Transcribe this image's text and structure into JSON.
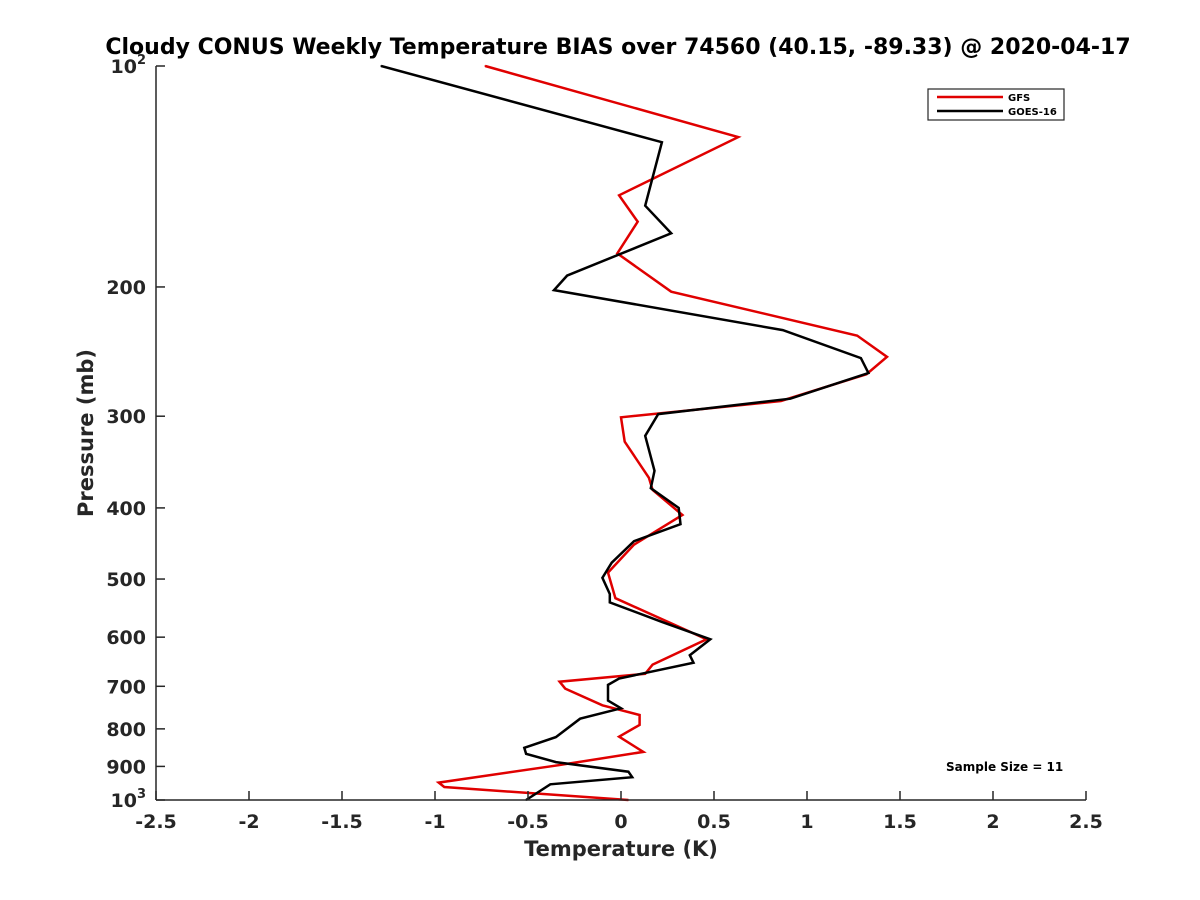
{
  "chart_data": {
    "type": "line",
    "title": "Cloudy CONUS Weekly Temperature BIAS over 74560 (40.15, -89.33) @ 2020-04-17",
    "xlabel": "Temperature (K)",
    "ylabel": "Pressure (mb)",
    "xlim": [
      -2.5,
      2.5
    ],
    "ylim": [
      100,
      1000
    ],
    "yscale": "log",
    "y_reversed": true,
    "grid": false,
    "legend_position": "top-right",
    "x_ticks": [
      -2.5,
      -2,
      -1.5,
      -1,
      -0.5,
      0,
      0.5,
      1,
      1.5,
      2,
      2.5
    ],
    "x_tick_labels": [
      "-2.5",
      "-2",
      "-1.5",
      "-1",
      "-0.5",
      "0",
      "0.5",
      "1",
      "1.5",
      "2",
      "2.5"
    ],
    "y_ticks": [
      100,
      200,
      300,
      400,
      500,
      600,
      700,
      800,
      900,
      1000
    ],
    "y_tick_labels": [
      {
        "base": "10",
        "exp": "2"
      },
      {
        "base": "200",
        "exp": ""
      },
      {
        "base": "300",
        "exp": ""
      },
      {
        "base": "400",
        "exp": ""
      },
      {
        "base": "500",
        "exp": ""
      },
      {
        "base": "600",
        "exp": ""
      },
      {
        "base": "700",
        "exp": ""
      },
      {
        "base": "800",
        "exp": ""
      },
      {
        "base": "900",
        "exp": ""
      },
      {
        "base": "10",
        "exp": "3"
      }
    ],
    "annotation": "Sample Size = 11",
    "series": [
      {
        "name": "GFS",
        "color": "#e00000",
        "points": [
          [
            -0.73,
            100
          ],
          [
            0.63,
            125
          ],
          [
            -0.01,
            150
          ],
          [
            0.09,
            163
          ],
          [
            -0.02,
            180
          ],
          [
            0.27,
            203
          ],
          [
            1.27,
            233
          ],
          [
            1.43,
            249
          ],
          [
            1.32,
            263
          ],
          [
            0.86,
            286
          ],
          [
            0.0,
            301
          ],
          [
            0.02,
            325
          ],
          [
            0.15,
            364
          ],
          [
            0.17,
            378
          ],
          [
            0.33,
            409
          ],
          [
            0.07,
            449
          ],
          [
            -0.07,
            490
          ],
          [
            -0.03,
            531
          ],
          [
            0.22,
            567
          ],
          [
            0.46,
            604
          ],
          [
            0.17,
            654
          ],
          [
            0.13,
            673
          ],
          [
            -0.33,
            690
          ],
          [
            -0.3,
            705
          ],
          [
            -0.1,
            743
          ],
          [
            0.1,
            766
          ],
          [
            0.1,
            790
          ],
          [
            -0.01,
            820
          ],
          [
            0.12,
            860
          ],
          [
            -0.34,
            897
          ],
          [
            -0.98,
            947
          ],
          [
            -0.95,
            960
          ],
          [
            0.04,
            1000
          ]
        ]
      },
      {
        "name": "GOES-16",
        "color": "#000000",
        "points": [
          [
            -1.29,
            100
          ],
          [
            0.22,
            127
          ],
          [
            0.13,
            155
          ],
          [
            0.27,
            169
          ],
          [
            -0.29,
            193
          ],
          [
            -0.36,
            202
          ],
          [
            0.87,
            229
          ],
          [
            1.29,
            250
          ],
          [
            1.33,
            262
          ],
          [
            0.91,
            284
          ],
          [
            0.2,
            298
          ],
          [
            0.13,
            319
          ],
          [
            0.18,
            356
          ],
          [
            0.16,
            376
          ],
          [
            0.31,
            400
          ],
          [
            0.32,
            421
          ],
          [
            0.07,
            444
          ],
          [
            -0.05,
            475
          ],
          [
            -0.1,
            498
          ],
          [
            -0.06,
            524
          ],
          [
            -0.06,
            538
          ],
          [
            0.22,
            572
          ],
          [
            0.48,
            604
          ],
          [
            0.37,
            635
          ],
          [
            0.39,
            650
          ],
          [
            -0.01,
            683
          ],
          [
            -0.07,
            697
          ],
          [
            -0.07,
            732
          ],
          [
            0.0,
            750
          ],
          [
            -0.22,
            775
          ],
          [
            -0.35,
            821
          ],
          [
            -0.52,
            849
          ],
          [
            -0.51,
            865
          ],
          [
            -0.35,
            888
          ],
          [
            0.04,
            915
          ],
          [
            0.06,
            931
          ],
          [
            -0.38,
            952
          ],
          [
            -0.51,
            1000
          ]
        ]
      }
    ]
  }
}
